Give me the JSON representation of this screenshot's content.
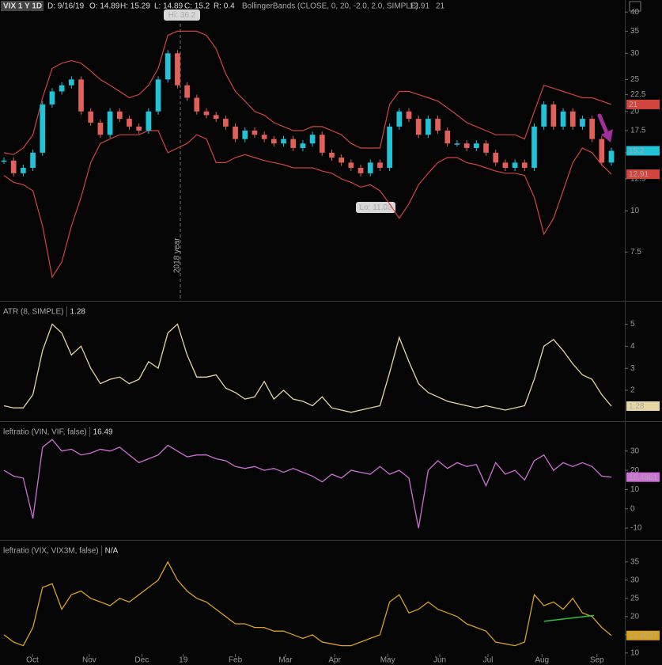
{
  "chart_data": [
    {
      "type": "candlestick",
      "header": [
        "VIX 1 Y 1D",
        "D: 9/16/19",
        "O: 14.89",
        "H: 15.29",
        "L: 14.89",
        "C: 15.2",
        "R: 0.4"
      ],
      "study": "BollingerBands (CLOSE, 0, 20, -2.0, 2.0, SIMPLE)",
      "up_color": "#22c3d6",
      "down_color": "#e0605a",
      "values": [
        14.2,
        13,
        13.5,
        15,
        21,
        23,
        24,
        25,
        20,
        18.5,
        17,
        20,
        19,
        18,
        17.5,
        20,
        25,
        30,
        24,
        22,
        20,
        19.5,
        19,
        18,
        16.5,
        17.5,
        17,
        16.5,
        16,
        16.5,
        15.5,
        16,
        17,
        15,
        14.5,
        14,
        13.5,
        13,
        14,
        13.5,
        18,
        20,
        19,
        17,
        19,
        17.5,
        16,
        16,
        15.5,
        16,
        15,
        14,
        13.5,
        14,
        13.5,
        18,
        21,
        18,
        20,
        18,
        19,
        16.5,
        14,
        15.2
      ],
      "series": [
        {
          "color": "#d0463e",
          "values": [
            15,
            14.8,
            15.5,
            17,
            22,
            27,
            28,
            28.5,
            28,
            26.5,
            25,
            24,
            23,
            22,
            22.5,
            24,
            27,
            34,
            35,
            35,
            35,
            34,
            31,
            26,
            23,
            21.5,
            20,
            19.5,
            18.5,
            18,
            17.5,
            17.5,
            18,
            18,
            17.5,
            17,
            16,
            15.5,
            15.5,
            15.5,
            21,
            23,
            23,
            22.5,
            22,
            21.5,
            20.5,
            19.5,
            18.5,
            18,
            17.5,
            17,
            17,
            17,
            16.5,
            20,
            24,
            23.5,
            23,
            22.5,
            22,
            22,
            21.5,
            21
          ]
        },
        {
          "color": "#d0463e",
          "values": [
            12.8,
            12.2,
            12,
            11.5,
            9,
            6.3,
            7,
            9,
            11,
            14,
            16,
            16.5,
            17,
            17,
            17,
            17.5,
            17.5,
            15,
            15.5,
            16,
            17,
            16.5,
            14,
            14,
            14.5,
            14.8,
            14.5,
            14.2,
            14,
            13.8,
            13.5,
            13.5,
            13.5,
            13.2,
            13,
            12.5,
            12.2,
            11.8,
            12,
            11.5,
            10.5,
            9.5,
            10.5,
            12,
            13,
            14,
            14.5,
            14.5,
            14,
            13.8,
            13.5,
            13.2,
            13,
            13,
            12.8,
            11,
            8.5,
            9.5,
            11.5,
            14,
            15.5,
            15,
            13.8,
            12.91
          ]
        }
      ],
      "log_scale": true,
      "ylim": [
        5.4,
        43.5
      ],
      "yticks": [
        7.5,
        10,
        12.5,
        15,
        17.5,
        20,
        22.5,
        25,
        30,
        35,
        40
      ],
      "xlim": [
        0,
        63
      ],
      "annotations": [
        "Hi: 36.2",
        "Lo: 11.03",
        "2018 year"
      ]
    },
    {
      "type": "line",
      "title": "ATR (8, SIMPLE)",
      "color": "#e6d6a4",
      "values": [
        1.3,
        1.2,
        1.2,
        1.8,
        3.8,
        5,
        4.6,
        3.6,
        4,
        3,
        2.3,
        2.5,
        2.6,
        2.3,
        2.5,
        3.3,
        3,
        4.6,
        5,
        3.6,
        2.6,
        2.6,
        2.7,
        2.1,
        1.9,
        1.6,
        1.7,
        2.4,
        1.6,
        2,
        1.6,
        1.5,
        1.3,
        1.7,
        1.2,
        1.1,
        1,
        1.1,
        1.2,
        1.3,
        2.8,
        4.4,
        3.3,
        2.3,
        1.9,
        1.7,
        1.5,
        1.4,
        1.3,
        1.2,
        1.3,
        1.2,
        1.1,
        1.2,
        1.3,
        2.5,
        4,
        4.3,
        3.8,
        3.2,
        2.7,
        2.5,
        1.8,
        1.28
      ],
      "ylim": [
        0.67,
        5.95
      ],
      "yticks": [
        2,
        3,
        4,
        5
      ],
      "xlim": [
        0,
        63
      ]
    },
    {
      "type": "line",
      "title": "leftratio (VIN, VIF, false)",
      "current": 16.49,
      "color": "#cf6fd6",
      "values": [
        20,
        17,
        16,
        -5,
        32,
        36,
        30,
        31,
        28,
        29,
        31,
        30,
        32,
        28,
        24,
        26,
        28,
        33,
        30,
        27,
        28,
        28,
        26,
        25,
        22,
        21,
        22,
        20,
        21,
        19,
        21,
        19,
        17,
        14,
        18,
        16,
        20,
        19,
        18,
        22,
        18,
        20,
        16,
        -10,
        20,
        25,
        21,
        24,
        22,
        23,
        12,
        24,
        18,
        20,
        15,
        25,
        28,
        20,
        24,
        22,
        24,
        22,
        17,
        16.4861
      ],
      "ylim": [
        -15.3,
        44.3
      ],
      "yticks": [
        -10,
        0,
        10,
        20,
        30
      ],
      "xlim": [
        0,
        63
      ]
    },
    {
      "type": "line",
      "title": "leftratio (VIX, VIX3M, false)",
      "current": "N/A",
      "color": "#d9a21b",
      "values": [
        15,
        13,
        12,
        17,
        28,
        29,
        22,
        26,
        27,
        25,
        24,
        23,
        25,
        24,
        26,
        28,
        30,
        35,
        30,
        27,
        25,
        24,
        22,
        20,
        18,
        18,
        17,
        17,
        16,
        16,
        15,
        14,
        15,
        13,
        12.5,
        12,
        12,
        13,
        14,
        15,
        24,
        26,
        21,
        22,
        24,
        22,
        21,
        20,
        18,
        17,
        16,
        13,
        12.5,
        12,
        13,
        26,
        23,
        24,
        22,
        25,
        21,
        20,
        17,
        14.8037
      ],
      "trendline": {
        "color": "#2fbf3f",
        "x": [
          56,
          61.2
        ],
        "values": [
          18.7,
          20.3
        ]
      },
      "ylim": [
        6.7,
        40.4
      ],
      "yticks": [
        10,
        15,
        20,
        25,
        30,
        35
      ],
      "xlim": [
        0,
        63
      ],
      "xticks": [
        {
          "value": 2.95,
          "label": "Oct"
        },
        {
          "value": 8.85,
          "label": "Nov"
        },
        {
          "value": 14.3,
          "label": "Dec"
        },
        {
          "value": 18.6,
          "label": "19"
        },
        {
          "value": 24.0,
          "label": "Feb"
        },
        {
          "value": 29.2,
          "label": "Mar"
        },
        {
          "value": 34.3,
          "label": "Apr"
        },
        {
          "value": 39.8,
          "label": "May"
        },
        {
          "value": 45.2,
          "label": "Jun"
        },
        {
          "value": 50.2,
          "label": "Jul"
        },
        {
          "value": 55.8,
          "label": "Aug"
        },
        {
          "value": 61.5,
          "label": "Sep"
        }
      ]
    }
  ]
}
